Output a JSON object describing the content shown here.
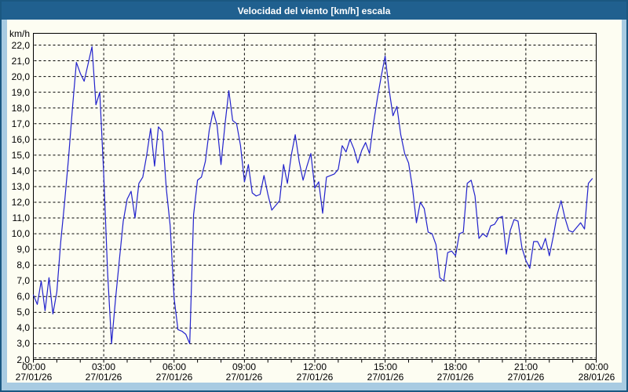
{
  "window": {
    "title": "Velocidad del viento [km/h] escala"
  },
  "colors": {
    "frame_border": "#1a5781",
    "title_bar_bg": "#20608f",
    "title_text": "#ffffff",
    "margin_bg": "#a8cbe2",
    "panel_bg": "#fdfdf2",
    "plot_border": "#000000",
    "grid_color": "#000000",
    "line_color": "#2222cc",
    "label_color": "#000000"
  },
  "chart_data": {
    "type": "line",
    "title": "Velocidad del viento [km/h] escala",
    "ylabel": "km/h",
    "ylim": [
      2,
      22
    ],
    "y_tick_step": 1,
    "y_tick_format": "comma-decimal",
    "grid": "dashed horizontal every 1 km/h, dashed vertical every 3 h",
    "legend": "none",
    "x_ticks": [
      {
        "time": "00:00",
        "date": "27/01/26"
      },
      {
        "time": "03:00",
        "date": "27/01/26"
      },
      {
        "time": "06:00",
        "date": "27/01/26"
      },
      {
        "time": "09:00",
        "date": "27/01/26"
      },
      {
        "time": "12:00",
        "date": "27/01/26"
      },
      {
        "time": "15:00",
        "date": "27/01/26"
      },
      {
        "time": "18:00",
        "date": "27/01/26"
      },
      {
        "time": "21:00",
        "date": "27/01/26"
      },
      {
        "time": "00:00",
        "date": "28/01/26"
      }
    ],
    "series": [
      {
        "name": "Velocidad del viento [km/h]",
        "start_time": "00:00",
        "sample_interval_minutes": 10,
        "values": [
          6.1,
          5.5,
          7.0,
          5.1,
          7.2,
          4.9,
          6.3,
          9.5,
          12.0,
          14.8,
          18.0,
          20.9,
          20.2,
          19.7,
          20.8,
          21.9,
          18.2,
          19.0,
          13.8,
          7.5,
          3.0,
          5.8,
          8.3,
          10.8,
          12.2,
          12.7,
          11.0,
          13.2,
          13.6,
          15.0,
          16.7,
          14.3,
          16.8,
          16.5,
          12.9,
          10.5,
          5.9,
          3.9,
          3.8,
          3.6,
          3.0,
          11.2,
          13.4,
          13.6,
          14.6,
          16.6,
          17.8,
          16.9,
          14.4,
          16.9,
          19.1,
          17.2,
          17.0,
          15.6,
          13.3,
          14.4,
          12.6,
          12.4,
          12.5,
          13.7,
          12.5,
          11.5,
          11.8,
          12.1,
          14.4,
          13.2,
          15.0,
          16.3,
          14.6,
          13.4,
          14.3,
          15.1,
          12.9,
          13.3,
          11.3,
          13.6,
          13.7,
          13.8,
          14.1,
          15.6,
          15.2,
          16.0,
          15.4,
          14.5,
          15.3,
          15.8,
          15.1,
          17.0,
          18.6,
          20.0,
          21.3,
          19.2,
          17.5,
          18.1,
          16.3,
          15.1,
          14.5,
          12.9,
          10.7,
          12.0,
          11.6,
          10.1,
          10.0,
          9.3,
          7.2,
          7.0,
          8.8,
          8.9,
          8.6,
          10.0,
          10.1,
          13.2,
          13.4,
          12.4,
          9.7,
          10.0,
          9.8,
          10.5,
          10.6,
          11.0,
          11.1,
          8.7,
          10.2,
          10.9,
          10.8,
          9.1,
          8.3,
          7.8,
          9.5,
          9.5,
          9.0,
          9.7,
          8.6,
          9.8,
          11.2,
          12.1,
          11.0,
          10.2,
          10.1,
          10.4,
          10.7,
          10.3,
          13.2,
          13.5
        ]
      }
    ]
  }
}
